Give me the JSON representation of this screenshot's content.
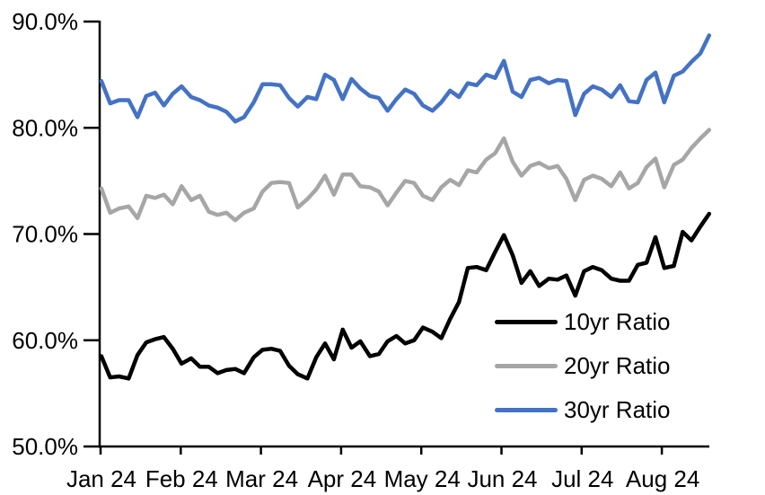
{
  "chart_data": {
    "type": "line",
    "title": "",
    "xlabel": "",
    "ylabel": "",
    "grid": false,
    "legend_position": "inside-lower-right",
    "y_axis": {
      "min": 50,
      "max": 90,
      "unit": "%",
      "tick_values": [
        90,
        80,
        70,
        60,
        50
      ],
      "tick_labels": [
        "90.0%",
        "80.0%",
        "70.0%",
        "60.0%",
        "50.0%"
      ]
    },
    "x_axis": {
      "tick_positions_months": [
        0,
        1,
        2,
        3,
        4,
        5,
        6,
        7
      ],
      "tick_labels": [
        "Jan 24",
        "Feb 24",
        "Mar 24",
        "Apr 24",
        "May 24",
        "Jun 24",
        "Jul 24",
        "Aug 24"
      ]
    },
    "x_months": [
      0.01,
      0.12,
      0.23,
      0.35,
      0.46,
      0.57,
      0.68,
      0.79,
      0.9,
      1.01,
      1.13,
      1.24,
      1.35,
      1.46,
      1.57,
      1.68,
      1.79,
      1.91,
      2.02,
      2.13,
      2.24,
      2.35,
      2.46,
      2.58,
      2.69,
      2.8,
      2.91,
      3.02,
      3.13,
      3.24,
      3.36,
      3.47,
      3.58,
      3.69,
      3.8,
      3.91,
      4.02,
      4.14,
      4.25,
      4.36,
      4.47,
      4.58,
      4.69,
      4.81,
      4.92,
      5.03,
      5.14,
      5.25,
      5.36,
      5.47,
      5.59,
      5.7,
      5.81,
      5.92,
      6.03,
      6.14,
      6.25,
      6.37,
      6.48,
      6.59,
      6.7,
      6.81,
      6.92,
      7.03,
      7.15,
      7.26,
      7.37,
      7.48,
      7.59
    ],
    "series": [
      {
        "name": "10yr Ratio",
        "color": "#000000",
        "values": [
          58.5,
          56.5,
          56.6,
          56.4,
          58.6,
          59.8,
          60.1,
          60.3,
          59.2,
          57.8,
          58.3,
          57.5,
          57.5,
          56.9,
          57.2,
          57.3,
          56.9,
          58.4,
          59.1,
          59.2,
          59.0,
          57.6,
          56.8,
          56.4,
          58.4,
          59.7,
          58.2,
          61.0,
          59.3,
          59.9,
          58.5,
          58.7,
          59.9,
          60.4,
          59.7,
          60.0,
          61.2,
          60.8,
          60.2,
          62.0,
          63.6,
          66.8,
          66.9,
          66.6,
          68.3,
          69.9,
          68.0,
          65.4,
          66.5,
          65.1,
          65.8,
          65.7,
          66.1,
          64.2,
          66.5,
          66.9,
          66.6,
          65.8,
          65.6,
          65.6,
          67.1,
          67.3,
          69.7,
          66.8,
          67.0,
          70.2,
          69.4,
          70.7,
          71.9
        ]
      },
      {
        "name": "20yr Ratio",
        "color": "#A6A6A6",
        "values": [
          74.3,
          72.0,
          72.4,
          72.6,
          71.5,
          73.6,
          73.4,
          73.7,
          72.8,
          74.5,
          73.2,
          73.6,
          72.1,
          71.8,
          72.0,
          71.3,
          72.0,
          72.4,
          74.0,
          74.8,
          74.9,
          74.8,
          72.5,
          73.3,
          74.2,
          75.5,
          73.7,
          75.6,
          75.6,
          74.5,
          74.4,
          74.0,
          72.7,
          73.9,
          75.0,
          74.8,
          73.6,
          73.2,
          74.4,
          75.1,
          74.6,
          76.0,
          75.8,
          77.0,
          77.6,
          79.0,
          76.8,
          75.5,
          76.4,
          76.7,
          76.2,
          76.4,
          75.2,
          73.2,
          75.1,
          75.5,
          75.2,
          74.5,
          75.8,
          74.3,
          74.8,
          76.3,
          77.1,
          74.4,
          76.5,
          77.0,
          78.1,
          79.0,
          79.8
        ]
      },
      {
        "name": "30yr Ratio",
        "color": "#4472C4",
        "values": [
          84.4,
          82.3,
          82.6,
          82.6,
          81.0,
          83.0,
          83.3,
          82.1,
          83.2,
          83.9,
          82.9,
          82.6,
          82.1,
          81.9,
          81.5,
          80.6,
          81.0,
          82.4,
          84.1,
          84.1,
          84.0,
          82.8,
          82.0,
          82.9,
          82.7,
          85.0,
          84.5,
          82.7,
          84.6,
          83.7,
          83.0,
          82.8,
          81.6,
          82.7,
          83.6,
          83.2,
          82.1,
          81.6,
          82.4,
          83.5,
          82.9,
          84.2,
          84.0,
          85.0,
          84.7,
          86.3,
          83.4,
          82.9,
          84.5,
          84.7,
          84.2,
          84.5,
          84.4,
          81.2,
          83.2,
          83.9,
          83.6,
          82.9,
          84.0,
          82.5,
          82.4,
          84.5,
          85.2,
          82.4,
          84.9,
          85.3,
          86.2,
          87.0,
          88.7
        ]
      }
    ],
    "axis_color": "#000000"
  }
}
